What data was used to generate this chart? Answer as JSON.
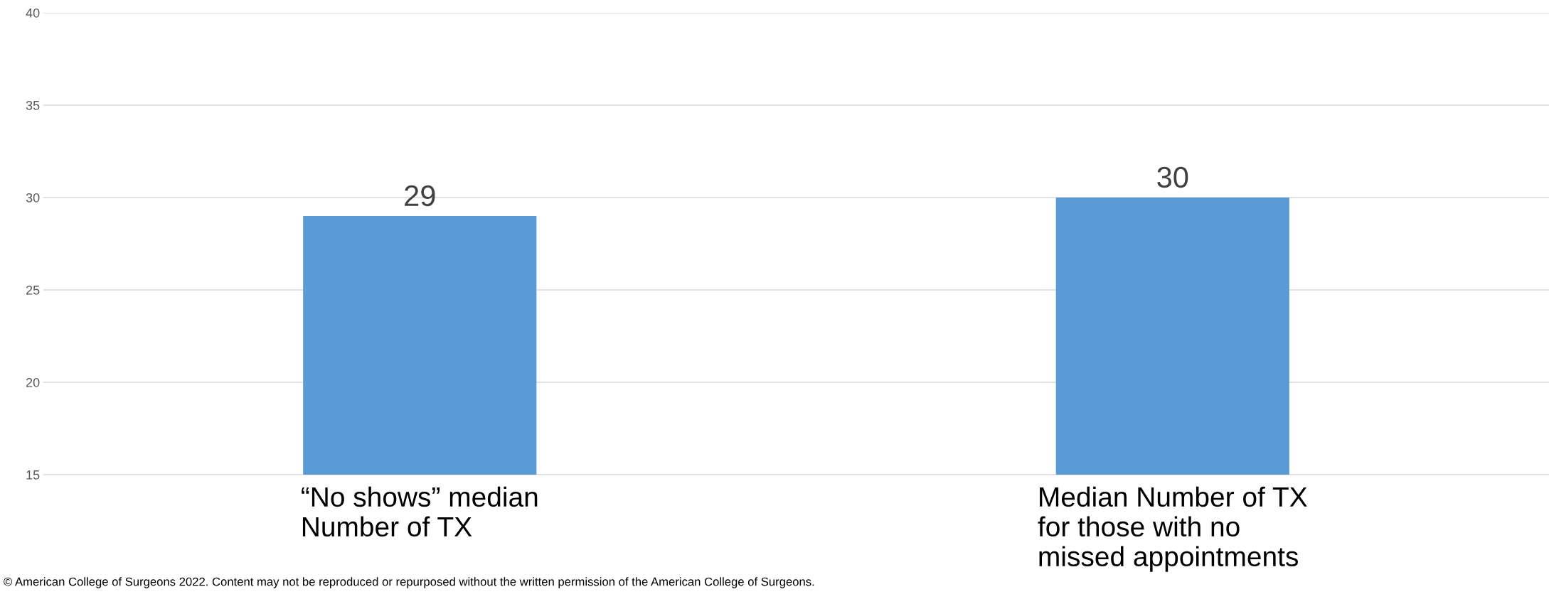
{
  "chart_data": {
    "type": "bar",
    "categories": [
      "“No shows” median\nNumber of TX",
      "Median Number of TX\nfor those with no\nmissed appointments"
    ],
    "values": [
      29,
      30
    ],
    "color": "#5b9bd5",
    "ylim": [
      15,
      40
    ],
    "yticks": [
      15,
      20,
      25,
      30,
      35,
      40
    ],
    "grid": "y",
    "data_labels": true,
    "annotations": [
      "© American College of Surgeons 2022. Content may not be reproduced or repurposed without the written permission of the American College of Surgeons."
    ]
  }
}
